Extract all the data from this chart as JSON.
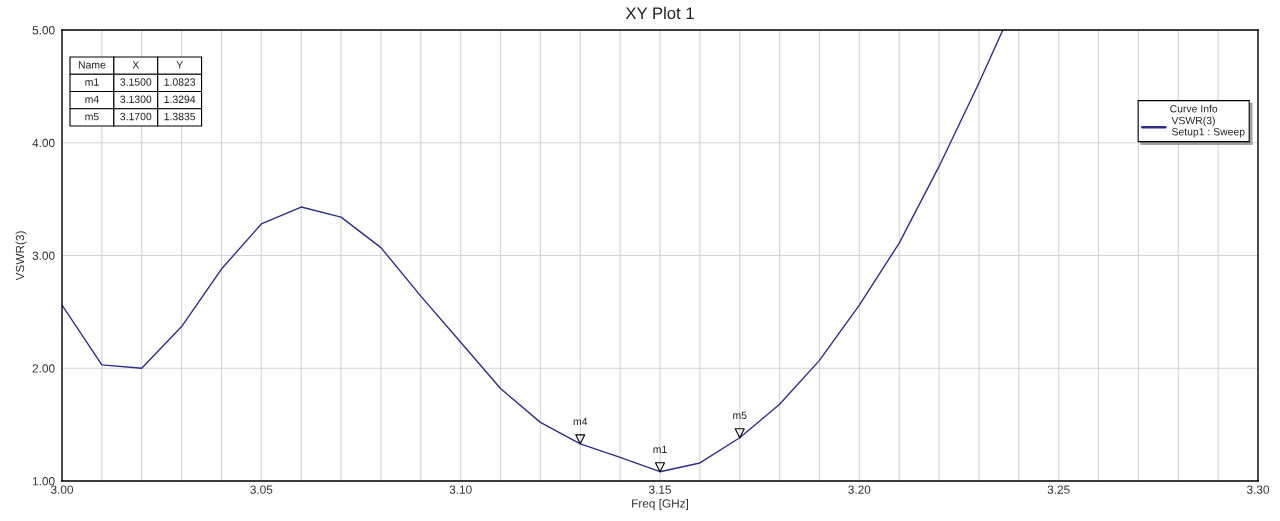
{
  "chart_data": {
    "type": "line",
    "title": "XY Plot 1",
    "xlabel": "Freq [GHz]",
    "ylabel": "VSWR(3)",
    "legend_title": "Curve Info",
    "series": [
      {
        "name": "VSWR(3)\nSetup1 : Sweep",
        "color": "#2e2e86",
        "x": [
          3.0,
          3.01,
          3.02,
          3.03,
          3.04,
          3.05,
          3.06,
          3.07,
          3.08,
          3.09,
          3.1,
          3.11,
          3.12,
          3.13,
          3.14,
          3.15,
          3.16,
          3.17,
          3.18,
          3.19,
          3.2,
          3.21,
          3.22,
          3.23,
          3.236
        ],
        "values": [
          2.56,
          2.03,
          2.0,
          2.37,
          2.88,
          3.28,
          3.43,
          3.34,
          3.07,
          2.64,
          2.23,
          1.82,
          1.52,
          1.3294,
          1.21,
          1.0823,
          1.16,
          1.3835,
          1.68,
          2.07,
          2.56,
          3.11,
          3.79,
          4.53,
          5.0
        ]
      }
    ],
    "annotations": [
      "Name",
      "X",
      "Y",
      "m1",
      "3.1500",
      "1.0823",
      "m4",
      "3.1300",
      "1.3294",
      "m5",
      "3.1700",
      "1.3835",
      {
        "text": "m1",
        "x": 3.15,
        "y": 1.0823
      },
      {
        "text": "m4",
        "x": 3.13,
        "y": 1.3294
      },
      {
        "text": "m5",
        "x": 3.17,
        "y": 1.3835
      }
    ],
    "xlim": [
      3.0,
      3.3
    ],
    "ylim": [
      1,
      5
    ],
    "xticks": [
      {
        "value": 3.0,
        "label": "3.00"
      },
      {
        "value": 3.01,
        "label": null
      },
      {
        "value": 3.02,
        "label": null
      },
      {
        "value": 3.03,
        "label": null
      },
      {
        "value": 3.04,
        "label": null
      },
      {
        "value": 3.05,
        "label": "3.05"
      },
      {
        "value": 3.06,
        "label": null
      },
      {
        "value": 3.07,
        "label": null
      },
      {
        "value": 3.08,
        "label": null
      },
      {
        "value": 3.09,
        "label": null
      },
      {
        "value": 3.1,
        "label": "3.10"
      },
      {
        "value": 3.11,
        "label": null
      },
      {
        "value": 3.12,
        "label": null
      },
      {
        "value": 3.13,
        "label": null
      },
      {
        "value": 3.14,
        "label": null
      },
      {
        "value": 3.15,
        "label": "3.15"
      },
      {
        "value": 3.16,
        "label": null
      },
      {
        "value": 3.17,
        "label": null
      },
      {
        "value": 3.18,
        "label": null
      },
      {
        "value": 3.19,
        "label": null
      },
      {
        "value": 3.2,
        "label": "3.20"
      },
      {
        "value": 3.21,
        "label": null
      },
      {
        "value": 3.22,
        "label": null
      },
      {
        "value": 3.23,
        "label": null
      },
      {
        "value": 3.24,
        "label": null
      },
      {
        "value": 3.25,
        "label": "3.25"
      },
      {
        "value": 3.26,
        "label": null
      },
      {
        "value": 3.27,
        "label": null
      },
      {
        "value": 3.28,
        "label": null
      },
      {
        "value": 3.29,
        "label": null
      },
      {
        "value": 3.3,
        "label": "3.30"
      }
    ],
    "yticks": [
      {
        "value": 1,
        "label": "1.00"
      },
      {
        "value": 2,
        "label": "2.00"
      },
      {
        "value": 3,
        "label": "3.00"
      },
      {
        "value": 4,
        "label": "4.00"
      },
      {
        "value": 5,
        "label": "5.00"
      }
    ],
    "grid": true,
    "legend": "top right"
  }
}
